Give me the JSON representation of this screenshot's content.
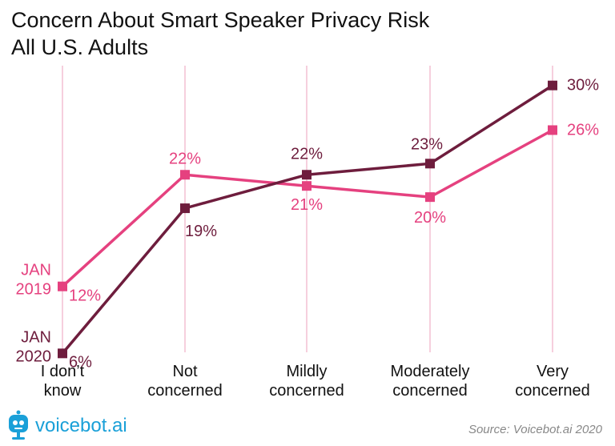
{
  "title": "Concern About Smart Speaker Privacy Risk",
  "subtitle": "All U.S. Adults",
  "source": "Source: Voicebot.ai 2020",
  "logo_text": "voicebot.ai",
  "colors": {
    "series_2019": "#e5417f",
    "series_2020": "#6e1d3d",
    "gridline": "#f3bfd2"
  },
  "chart_data": {
    "type": "line",
    "title": "Concern About Smart Speaker Privacy Risk",
    "subtitle": "All U.S. Adults",
    "categories": [
      "I don't know",
      "Not concerned",
      "Mildly concerned",
      "Moderately concerned",
      "Very concerned"
    ],
    "category_lines": [
      [
        "I don’t",
        "know"
      ],
      [
        "Not",
        "concerned"
      ],
      [
        "Mildly",
        "concerned"
      ],
      [
        "Moderately",
        "concerned"
      ],
      [
        "Very",
        "concerned"
      ]
    ],
    "ylim": [
      0,
      35
    ],
    "series": [
      {
        "name": "JAN 2019",
        "name_lines": [
          "JAN",
          "2019"
        ],
        "color": "#e5417f",
        "values": [
          12,
          22,
          21,
          20,
          26
        ],
        "labels": [
          "12%",
          "22%",
          "21%",
          "20%",
          "26%"
        ]
      },
      {
        "name": "JAN 2020",
        "name_lines": [
          "JAN",
          "2020"
        ],
        "color": "#6e1d3d",
        "values": [
          6,
          19,
          22,
          23,
          30
        ],
        "labels": [
          "6%",
          "19%",
          "22%",
          "23%",
          "30%"
        ]
      }
    ]
  }
}
